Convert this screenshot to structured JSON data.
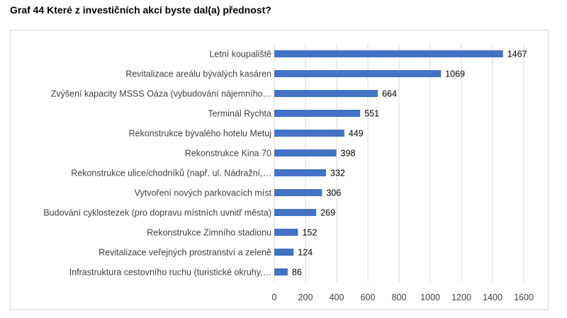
{
  "chart_data": {
    "type": "bar",
    "orientation": "horizontal",
    "title": "Graf 44 Které z investičních akcí byste dal(a) přednost?",
    "categories": [
      "Letní koupaliště",
      "Revitalizace areálu bývalých kasáren",
      "Zvýšení kapacity MSSS Oáza (vybudování nájemního…",
      "Terminál Rychta",
      "Rekonstrukce bývalého hotelu Metuj",
      "Rekonstrukce Kina 70",
      "Rekonstrukce ulice/chodníků (např. ul. Nádražní,…",
      "Vytvoření nových parkovacích míst",
      "Budování cyklostezek (pro dopravu místních uvnitř města)",
      "Rekonstrukce Zimního stadionu",
      "Revitalizace veřejných prostranství a zeleně",
      "Infrastruktura cestovního ruchu (turistické okruhy,…"
    ],
    "values": [
      1467,
      1069,
      664,
      551,
      449,
      398,
      332,
      306,
      269,
      152,
      124,
      86
    ],
    "xlim": [
      0,
      1600
    ],
    "xticks": [
      0,
      200,
      400,
      600,
      800,
      1000,
      1200,
      1400,
      1600
    ],
    "grid": true,
    "bar_color": "#4472c4",
    "grid_color": "#d9d9d9"
  }
}
